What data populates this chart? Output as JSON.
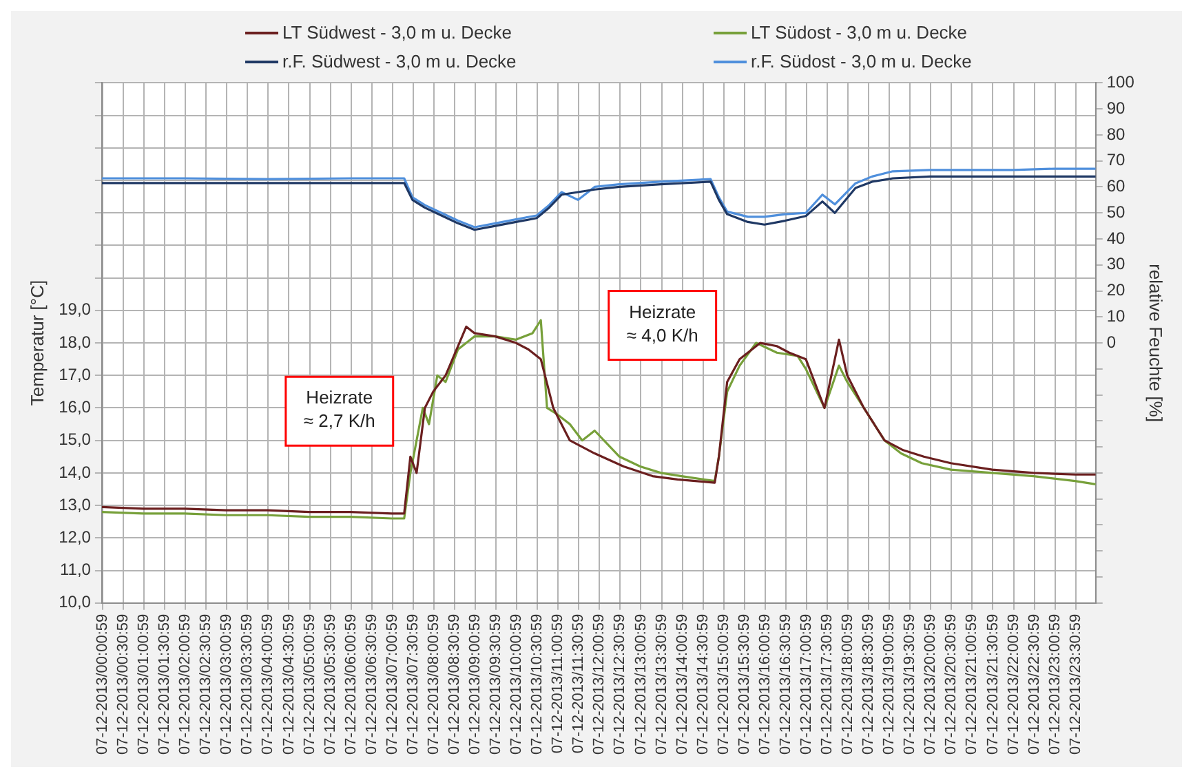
{
  "chart_data": {
    "type": "line",
    "ylabel": "Temperatur [°C]",
    "y2label": "relative Feuchte [%]",
    "annotations": [
      "Heizrate\n≈ 2,7 K/h",
      "Heizrate\n≈ 4,0 K/h"
    ],
    "xlim": [
      "2013-12-07T00:00",
      "2013-12-08T00:00"
    ],
    "xticks": [
      {
        "value": "2013-12-07T00:01",
        "label": "07-12-2013/00:00:59"
      },
      {
        "value": "2013-12-07T00:31",
        "label": "07-12-2013/00:30:59"
      },
      {
        "value": "2013-12-07T01:01",
        "label": "07-12-2013/01:00:59"
      },
      {
        "value": "2013-12-07T01:31",
        "label": "07-12-2013/01:30:59"
      },
      {
        "value": "2013-12-07T02:01",
        "label": "07-12-2013/02:00:59"
      },
      {
        "value": "2013-12-07T02:31",
        "label": "07-12-2013/02:30:59"
      },
      {
        "value": "2013-12-07T03:01",
        "label": "07-12-2013/03:00:59"
      },
      {
        "value": "2013-12-07T03:31",
        "label": "07-12-2013/03:30:59"
      },
      {
        "value": "2013-12-07T04:01",
        "label": "07-12-2013/04:00:59"
      },
      {
        "value": "2013-12-07T04:31",
        "label": "07-12-2013/04:30:59"
      },
      {
        "value": "2013-12-07T05:01",
        "label": "07-12-2013/05:00:59"
      },
      {
        "value": "2013-12-07T05:31",
        "label": "07-12-2013/05:30:59"
      },
      {
        "value": "2013-12-07T06:01",
        "label": "07-12-2013/06:00:59"
      },
      {
        "value": "2013-12-07T06:31",
        "label": "07-12-2013/06:30:59"
      },
      {
        "value": "2013-12-07T07:01",
        "label": "07-12-2013/07:00:59"
      },
      {
        "value": "2013-12-07T07:31",
        "label": "07-12-2013/07:30:59"
      },
      {
        "value": "2013-12-07T08:01",
        "label": "07-12-2013/08:00:59"
      },
      {
        "value": "2013-12-07T08:31",
        "label": "07-12-2013/08:30:59"
      },
      {
        "value": "2013-12-07T09:01",
        "label": "07-12-2013/09:00:59"
      },
      {
        "value": "2013-12-07T09:31",
        "label": "07-12-2013/09:30:59"
      },
      {
        "value": "2013-12-07T10:01",
        "label": "07-12-2013/10:00:59"
      },
      {
        "value": "2013-12-07T10:31",
        "label": "07-12-2013/10:30:59"
      },
      {
        "value": "2013-12-07T11:01",
        "label": "07-12-2013/11:00:59"
      },
      {
        "value": "2013-12-07T11:31",
        "label": "07-12-2013/11:30:59"
      },
      {
        "value": "2013-12-07T12:01",
        "label": "07-12-2013/12:00:59"
      },
      {
        "value": "2013-12-07T12:31",
        "label": "07-12-2013/12:30:59"
      },
      {
        "value": "2013-12-07T13:01",
        "label": "07-12-2013/13:00:59"
      },
      {
        "value": "2013-12-07T13:31",
        "label": "07-12-2013/13:30:59"
      },
      {
        "value": "2013-12-07T14:01",
        "label": "07-12-2013/14:00:59"
      },
      {
        "value": "2013-12-07T14:31",
        "label": "07-12-2013/14:30:59"
      },
      {
        "value": "2013-12-07T15:01",
        "label": "07-12-2013/15:00:59"
      },
      {
        "value": "2013-12-07T15:31",
        "label": "07-12-2013/15:30:59"
      },
      {
        "value": "2013-12-07T16:01",
        "label": "07-12-2013/16:00:59"
      },
      {
        "value": "2013-12-07T16:31",
        "label": "07-12-2013/16:30:59"
      },
      {
        "value": "2013-12-07T17:01",
        "label": "07-12-2013/17:00:59"
      },
      {
        "value": "2013-12-07T17:31",
        "label": "07-12-2013/17:30:59"
      },
      {
        "value": "2013-12-07T18:01",
        "label": "07-12-2013/18:00:59"
      },
      {
        "value": "2013-12-07T18:31",
        "label": "07-12-2013/18:30:59"
      },
      {
        "value": "2013-12-07T19:01",
        "label": "07-12-2013/19:00:59"
      },
      {
        "value": "2013-12-07T19:31",
        "label": "07-12-2013/19:30:59"
      },
      {
        "value": "2013-12-07T20:01",
        "label": "07-12-2013/20:00:59"
      },
      {
        "value": "2013-12-07T20:31",
        "label": "07-12-2013/20:30:59"
      },
      {
        "value": "2013-12-07T21:01",
        "label": "07-12-2013/21:00:59"
      },
      {
        "value": "2013-12-07T21:31",
        "label": "07-12-2013/21:30:59"
      },
      {
        "value": "2013-12-07T22:01",
        "label": "07-12-2013/22:00:59"
      },
      {
        "value": "2013-12-07T22:31",
        "label": "07-12-2013/22:30:59"
      },
      {
        "value": "2013-12-07T23:01",
        "label": "07-12-2013/23:00:59"
      },
      {
        "value": "2013-12-07T23:31",
        "label": "07-12-2013/23:30:59"
      }
    ],
    "ylim": [
      10,
      26
    ],
    "yticks": [
      {
        "value": 10,
        "label": "10,0"
      },
      {
        "value": 11,
        "label": "11,0"
      },
      {
        "value": 12,
        "label": "12,0"
      },
      {
        "value": 13,
        "label": "13,0"
      },
      {
        "value": 14,
        "label": "14,0"
      },
      {
        "value": 15,
        "label": "15,0"
      },
      {
        "value": 16,
        "label": "16,0"
      },
      {
        "value": 17,
        "label": "17,0"
      },
      {
        "value": 18,
        "label": "18,0"
      },
      {
        "value": 19,
        "label": "19,0"
      },
      {
        "value": 20,
        "label": null
      },
      {
        "value": 21,
        "label": null
      },
      {
        "value": 22,
        "label": null
      },
      {
        "value": 23,
        "label": null
      },
      {
        "value": 24,
        "label": null
      },
      {
        "value": 25,
        "label": null
      },
      {
        "value": 26,
        "label": null
      }
    ],
    "y2lim": [
      -100,
      100
    ],
    "y2ticks": [
      {
        "value": -100,
        "label": null
      },
      {
        "value": -90,
        "label": null
      },
      {
        "value": -80,
        "label": null
      },
      {
        "value": -70,
        "label": null
      },
      {
        "value": -60,
        "label": null
      },
      {
        "value": -50,
        "label": null
      },
      {
        "value": -40,
        "label": null
      },
      {
        "value": -30,
        "label": null
      },
      {
        "value": -20,
        "label": null
      },
      {
        "value": -10,
        "label": null
      },
      0,
      10,
      20,
      30,
      40,
      50,
      60,
      70,
      80,
      90,
      100
    ],
    "grid": true,
    "legend": "top",
    "series": [
      {
        "name": "LT Südwest - 3,0 m u. Decke",
        "color": "#6b1f1f",
        "x": [
          "2013-12-07T00:00",
          "2013-12-07T01:00",
          "2013-12-07T02:00",
          "2013-12-07T03:00",
          "2013-12-07T04:00",
          "2013-12-07T05:00",
          "2013-12-07T06:00",
          "2013-12-07T07:00",
          "2013-12-07T07:18",
          "2013-12-07T07:27",
          "2013-12-07T07:36",
          "2013-12-07T07:48",
          "2013-12-07T08:00",
          "2013-12-07T08:18",
          "2013-12-07T08:36",
          "2013-12-07T08:48",
          "2013-12-07T09:00",
          "2013-12-07T09:30",
          "2013-12-07T10:00",
          "2013-12-07T10:18",
          "2013-12-07T10:36",
          "2013-12-07T10:54",
          "2013-12-07T11:18",
          "2013-12-07T11:54",
          "2013-12-07T12:36",
          "2013-12-07T13:18",
          "2013-12-07T13:54",
          "2013-12-07T14:48",
          "2013-12-07T14:54",
          "2013-12-07T15:06",
          "2013-12-07T15:24",
          "2013-12-07T15:54",
          "2013-12-07T16:18",
          "2013-12-07T16:36",
          "2013-12-07T17:00",
          "2013-12-07T17:27",
          "2013-12-07T17:48",
          "2013-12-07T18:00",
          "2013-12-07T18:24",
          "2013-12-07T18:54",
          "2013-12-07T19:21",
          "2013-12-07T19:51",
          "2013-12-07T20:30",
          "2013-12-07T21:30",
          "2013-12-07T22:30",
          "2013-12-07T23:30",
          "2013-12-08T00:00"
        ],
        "values": [
          12.95,
          12.9,
          12.9,
          12.85,
          12.85,
          12.8,
          12.8,
          12.75,
          12.75,
          14.5,
          14.0,
          16.0,
          16.5,
          17.0,
          17.9,
          18.5,
          18.3,
          18.2,
          18.0,
          17.8,
          17.5,
          16.0,
          15.0,
          14.6,
          14.2,
          13.9,
          13.8,
          13.7,
          14.5,
          16.8,
          17.5,
          18.0,
          17.9,
          17.7,
          17.5,
          16.0,
          18.1,
          17.0,
          16.0,
          15.0,
          14.7,
          14.5,
          14.3,
          14.1,
          14.0,
          13.95,
          13.95
        ]
      },
      {
        "name": "LT Südost - 3,0 m u. Decke",
        "color": "#77a03a",
        "x": [
          "2013-12-07T00:00",
          "2013-12-07T01:00",
          "2013-12-07T02:00",
          "2013-12-07T03:00",
          "2013-12-07T04:00",
          "2013-12-07T05:00",
          "2013-12-07T06:00",
          "2013-12-07T07:00",
          "2013-12-07T07:18",
          "2013-12-07T07:27",
          "2013-12-07T07:36",
          "2013-12-07T07:45",
          "2013-12-07T07:54",
          "2013-12-07T08:06",
          "2013-12-07T08:18",
          "2013-12-07T08:36",
          "2013-12-07T09:00",
          "2013-12-07T09:30",
          "2013-12-07T10:00",
          "2013-12-07T10:24",
          "2013-12-07T10:36",
          "2013-12-07T10:45",
          "2013-12-07T11:00",
          "2013-12-07T11:18",
          "2013-12-07T11:36",
          "2013-12-07T11:54",
          "2013-12-07T12:30",
          "2013-12-07T13:00",
          "2013-12-07T13:30",
          "2013-12-07T14:00",
          "2013-12-07T14:48",
          "2013-12-07T14:54",
          "2013-12-07T15:06",
          "2013-12-07T15:24",
          "2013-12-07T15:48",
          "2013-12-07T16:18",
          "2013-12-07T16:48",
          "2013-12-07T17:00",
          "2013-12-07T17:27",
          "2013-12-07T17:48",
          "2013-12-07T18:00",
          "2013-12-07T18:24",
          "2013-12-07T18:54",
          "2013-12-07T19:18",
          "2013-12-07T19:48",
          "2013-12-07T20:30",
          "2013-12-07T21:30",
          "2013-12-07T22:30",
          "2013-12-07T23:30",
          "2013-12-08T00:00"
        ],
        "values": [
          12.8,
          12.75,
          12.75,
          12.7,
          12.7,
          12.65,
          12.65,
          12.6,
          12.6,
          14.0,
          15.0,
          16.0,
          15.5,
          17.0,
          16.8,
          17.8,
          18.2,
          18.2,
          18.1,
          18.3,
          18.7,
          16.0,
          15.8,
          15.5,
          15.0,
          15.3,
          14.5,
          14.2,
          14.0,
          13.9,
          13.75,
          14.5,
          16.5,
          17.3,
          18.0,
          17.7,
          17.6,
          17.2,
          16.0,
          17.3,
          16.8,
          16.0,
          15.0,
          14.6,
          14.3,
          14.1,
          14.0,
          13.9,
          13.75,
          13.65
        ]
      },
      {
        "name": "r.F. Südwest - 3,0 m u. Decke",
        "color": "#1f3864",
        "axis": "y2",
        "x": [
          "2013-12-07T00:00",
          "2013-12-07T02:00",
          "2013-12-07T04:00",
          "2013-12-07T06:00",
          "2013-12-07T07:18",
          "2013-12-07T07:30",
          "2013-12-07T07:48",
          "2013-12-07T08:12",
          "2013-12-07T08:36",
          "2013-12-07T09:00",
          "2013-12-07T09:30",
          "2013-12-07T10:00",
          "2013-12-07T10:30",
          "2013-12-07T10:48",
          "2013-12-07T11:06",
          "2013-12-07T11:30",
          "2013-12-07T11:54",
          "2013-12-07T12:30",
          "2013-12-07T13:30",
          "2013-12-07T14:42",
          "2013-12-07T14:54",
          "2013-12-07T15:06",
          "2013-12-07T15:36",
          "2013-12-07T16:00",
          "2013-12-07T16:30",
          "2013-12-07T17:00",
          "2013-12-07T17:24",
          "2013-12-07T17:42",
          "2013-12-07T18:12",
          "2013-12-07T18:36",
          "2013-12-07T19:06",
          "2013-12-07T20:00",
          "2013-12-07T21:00",
          "2013-12-07T22:00",
          "2013-12-07T23:00",
          "2013-12-08T00:00"
        ],
        "values": [
          61.5,
          61.5,
          61.5,
          61.5,
          61.5,
          55,
          52,
          49,
          46,
          43.5,
          45,
          46.5,
          48,
          52,
          57,
          58,
          59,
          60,
          61,
          62,
          55,
          49.5,
          46.5,
          45.5,
          47,
          48.8,
          54.4,
          50,
          59.6,
          62,
          63.3,
          64,
          64,
          64,
          64,
          64
        ]
      },
      {
        "name": "r.F. Südost - 3,0 m u. Decke",
        "color": "#4f8fdc",
        "axis": "y2",
        "x": [
          "2013-12-07T00:00",
          "2013-12-07T02:00",
          "2013-12-07T04:00",
          "2013-12-07T06:00",
          "2013-12-07T07:18",
          "2013-12-07T07:30",
          "2013-12-07T07:48",
          "2013-12-07T08:12",
          "2013-12-07T08:36",
          "2013-12-07T09:00",
          "2013-12-07T09:30",
          "2013-12-07T10:00",
          "2013-12-07T10:30",
          "2013-12-07T10:48",
          "2013-12-07T11:06",
          "2013-12-07T11:30",
          "2013-12-07T11:54",
          "2013-12-07T12:30",
          "2013-12-07T13:30",
          "2013-12-07T14:42",
          "2013-12-07T14:54",
          "2013-12-07T15:06",
          "2013-12-07T15:36",
          "2013-12-07T16:00",
          "2013-12-07T16:30",
          "2013-12-07T17:00",
          "2013-12-07T17:24",
          "2013-12-07T17:42",
          "2013-12-07T18:12",
          "2013-12-07T18:36",
          "2013-12-07T19:06",
          "2013-12-07T20:00",
          "2013-12-07T21:00",
          "2013-12-07T22:00",
          "2013-12-07T23:00",
          "2013-12-08T00:00"
        ],
        "values": [
          63.3,
          63.3,
          63,
          63.3,
          63.3,
          56,
          53,
          50,
          47,
          44.5,
          46,
          47.5,
          49,
          53,
          58,
          55,
          60,
          61,
          62,
          63,
          56,
          50.5,
          48.5,
          48.5,
          49.5,
          50,
          57,
          53.3,
          61.4,
          64,
          66,
          66.5,
          66.5,
          66.5,
          67,
          67
        ]
      }
    ]
  }
}
